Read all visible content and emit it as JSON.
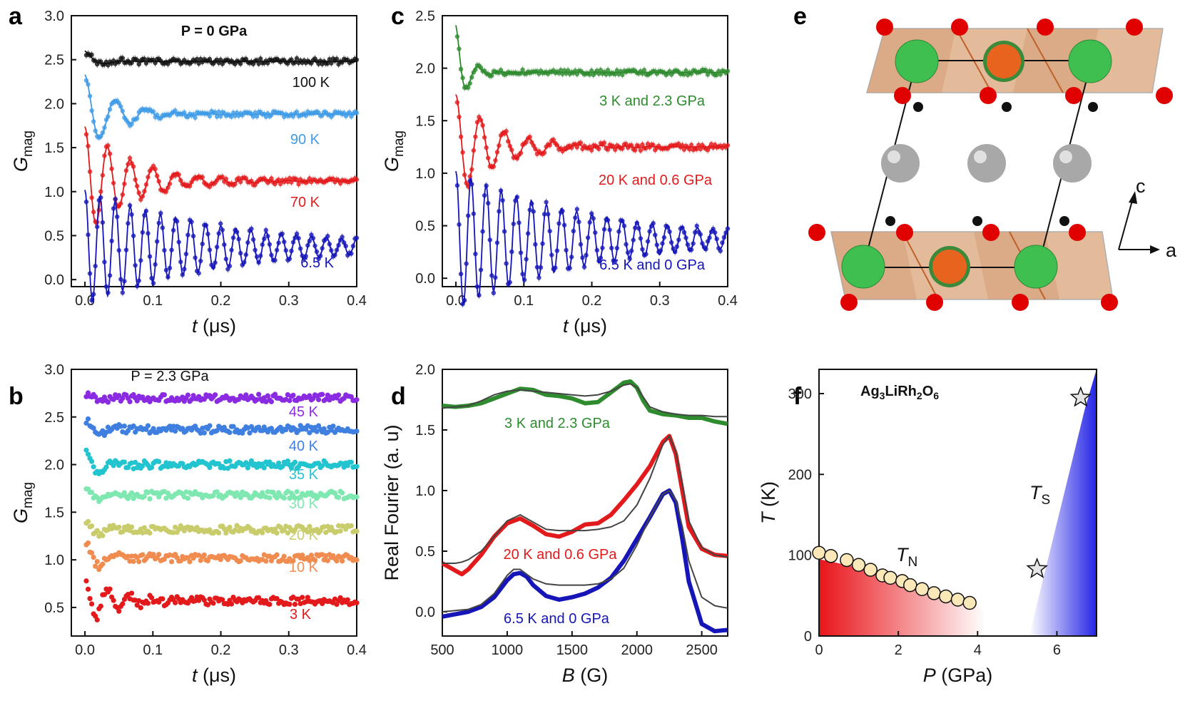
{
  "figure": {
    "panels": [
      "a",
      "b",
      "c",
      "d",
      "e",
      "f"
    ]
  },
  "chart_data": [
    {
      "id": "a",
      "type": "scatter",
      "title": "P = 0 GPa",
      "xlabel": "t (μs)",
      "ylabel": "G_mag",
      "xlim": [
        -0.02,
        0.4
      ],
      "ylim": [
        -0.08,
        3.0
      ],
      "xticks": [
        0.0,
        0.1,
        0.2,
        0.3,
        0.4
      ],
      "yticks": [
        0.0,
        0.5,
        1.0,
        1.5,
        2.0,
        2.5,
        3.0
      ],
      "series": [
        {
          "name": "100 K",
          "color": "#111111",
          "offset": 2.48,
          "amp": 0.12,
          "freq": 15,
          "decay": 0.02,
          "relax": 0.0,
          "noise": 0.035
        },
        {
          "name": "90 K",
          "color": "#3f9be6",
          "offset": 1.88,
          "amp": 0.45,
          "freq": 22,
          "decay": 0.045,
          "relax": 0.0,
          "noise": 0.03
        },
        {
          "name": "70 K",
          "color": "#e31a1c",
          "offset": 1.12,
          "amp": 0.62,
          "freq": 30,
          "decay": 0.07,
          "relax": 0.0,
          "noise": 0.03
        },
        {
          "name": "6.5 K",
          "color": "#1515b8",
          "offset": 0.37,
          "amp": 0.65,
          "freq": 45,
          "decay": 0.2,
          "relax": 0.0,
          "noise": 0.03
        }
      ]
    },
    {
      "id": "b",
      "type": "scatter",
      "title": "P = 2.3 GPa",
      "xlabel": "t (μs)",
      "ylabel": "G_mag",
      "xlim": [
        -0.02,
        0.4
      ],
      "ylim": [
        0.2,
        3.0
      ],
      "xticks": [
        0.0,
        0.1,
        0.2,
        0.3,
        0.4
      ],
      "yticks": [
        0.5,
        1.0,
        1.5,
        2.0,
        2.5,
        3.0
      ],
      "series": [
        {
          "name": "45 K",
          "color": "#8a2be2",
          "offset": 2.7,
          "amp": 0.06,
          "freq": 18,
          "decay": 0.02,
          "relax": 0.0,
          "noise": 0.04
        },
        {
          "name": "40 K",
          "color": "#3f7fe0",
          "offset": 2.37,
          "amp": 0.12,
          "freq": 20,
          "decay": 0.02,
          "relax": 0.0,
          "noise": 0.04
        },
        {
          "name": "35 K",
          "color": "#22c4cf",
          "offset": 2.0,
          "amp": 0.22,
          "freq": 22,
          "decay": 0.02,
          "relax": 0.0,
          "noise": 0.04
        },
        {
          "name": "30 K",
          "color": "#7fe8b0",
          "offset": 1.68,
          "amp": 0.12,
          "freq": 22,
          "decay": 0.02,
          "relax": 0.0,
          "noise": 0.04
        },
        {
          "name": "20 K",
          "color": "#c9cc6a",
          "offset": 1.32,
          "amp": 0.12,
          "freq": 22,
          "decay": 0.02,
          "relax": 0.0,
          "noise": 0.04
        },
        {
          "name": "10 K",
          "color": "#f08c50",
          "offset": 1.02,
          "amp": 0.2,
          "freq": 22,
          "decay": 0.025,
          "relax": 0.0,
          "noise": 0.04
        },
        {
          "name": "3 K",
          "color": "#e31a1c",
          "offset": 0.57,
          "amp": 0.28,
          "freq": 30,
          "decay": 0.04,
          "relax": 0.0,
          "noise": 0.04
        }
      ]
    },
    {
      "id": "c",
      "type": "scatter",
      "xlabel": "t (μs)",
      "ylabel": "G_mag",
      "xlim": [
        -0.02,
        0.4
      ],
      "ylim": [
        -0.08,
        2.5
      ],
      "xticks": [
        0.0,
        0.1,
        0.2,
        0.3,
        0.4
      ],
      "yticks": [
        0.0,
        0.5,
        1.0,
        1.5,
        2.0,
        2.5
      ],
      "series": [
        {
          "name": "3 K and 2.3 GPa",
          "color": "#2e8b2e",
          "offset": 1.96,
          "amp": 0.45,
          "freq": 30,
          "decay": 0.015,
          "relax": 0.0,
          "noise": 0.025
        },
        {
          "name": "20 K and 0.6 GPa",
          "color": "#e31a1c",
          "offset": 1.25,
          "amp": 0.5,
          "freq": 28,
          "decay": 0.06,
          "relax": 0.0,
          "noise": 0.03
        },
        {
          "name": "6.5 K and 0 GPa",
          "color": "#1515b8",
          "offset": 0.37,
          "amp": 0.65,
          "freq": 45,
          "decay": 0.2,
          "relax": 0.0,
          "noise": 0.03
        }
      ]
    },
    {
      "id": "d",
      "type": "line",
      "xlabel": "B (G)",
      "ylabel": "Real Fourier (a. u)",
      "xlim": [
        500,
        2700
      ],
      "ylim": [
        -0.2,
        2.0
      ],
      "xticks": [
        500,
        1000,
        1500,
        2000,
        2500
      ],
      "yticks": [
        0.0,
        0.5,
        1.0,
        1.5,
        2.0
      ],
      "series": [
        {
          "name": "3 K and 2.3 GPa",
          "color": "#2e8b2e",
          "x": [
            500,
            600,
            700,
            800,
            900,
            1000,
            1100,
            1200,
            1300,
            1400,
            1500,
            1600,
            1700,
            1800,
            1900,
            1950,
            2000,
            2050,
            2100,
            2200,
            2300,
            2400,
            2500,
            2600,
            2700
          ],
          "y": [
            1.7,
            1.69,
            1.7,
            1.72,
            1.76,
            1.8,
            1.84,
            1.83,
            1.79,
            1.78,
            1.76,
            1.72,
            1.73,
            1.81,
            1.89,
            1.9,
            1.85,
            1.74,
            1.66,
            1.63,
            1.62,
            1.6,
            1.6,
            1.57,
            1.55
          ],
          "fit": [
            1.68,
            1.69,
            1.7,
            1.74,
            1.79,
            1.82,
            1.83,
            1.82,
            1.81,
            1.8,
            1.79,
            1.78,
            1.79,
            1.82,
            1.87,
            1.88,
            1.85,
            1.77,
            1.69,
            1.65,
            1.63,
            1.62,
            1.62,
            1.61,
            1.61
          ]
        },
        {
          "name": "20 K and 0.6 GPa",
          "color": "#e31a1c",
          "x": [
            500,
            600,
            650,
            700,
            800,
            900,
            1000,
            1100,
            1200,
            1300,
            1400,
            1500,
            1600,
            1700,
            1800,
            1900,
            2000,
            2100,
            2200,
            2250,
            2300,
            2350,
            2400,
            2500,
            2600,
            2700
          ],
          "y": [
            0.4,
            0.34,
            0.31,
            0.35,
            0.47,
            0.62,
            0.73,
            0.77,
            0.71,
            0.64,
            0.62,
            0.66,
            0.72,
            0.73,
            0.8,
            0.92,
            1.05,
            1.2,
            1.4,
            1.45,
            1.3,
            1.0,
            0.7,
            0.52,
            0.47,
            0.46
          ],
          "fit": [
            0.4,
            0.4,
            0.41,
            0.43,
            0.5,
            0.62,
            0.75,
            0.8,
            0.74,
            0.68,
            0.67,
            0.67,
            0.67,
            0.68,
            0.7,
            0.75,
            0.88,
            1.1,
            1.38,
            1.45,
            1.32,
            1.05,
            0.75,
            0.53,
            0.47,
            0.45
          ]
        },
        {
          "name": "6.5 K and 0 GPa",
          "color": "#1515b8",
          "x": [
            500,
            600,
            700,
            800,
            900,
            1000,
            1050,
            1100,
            1150,
            1200,
            1300,
            1400,
            1500,
            1600,
            1700,
            1800,
            1900,
            2000,
            2100,
            2200,
            2250,
            2300,
            2350,
            2400,
            2500,
            2600,
            2700
          ],
          "y": [
            -0.04,
            -0.02,
            0.0,
            0.04,
            0.12,
            0.26,
            0.31,
            0.32,
            0.29,
            0.22,
            0.13,
            0.1,
            0.12,
            0.15,
            0.2,
            0.28,
            0.42,
            0.6,
            0.78,
            0.97,
            1.0,
            0.9,
            0.6,
            0.25,
            -0.1,
            -0.16,
            -0.15
          ],
          "fit": [
            0.0,
            0.01,
            0.02,
            0.06,
            0.15,
            0.3,
            0.35,
            0.35,
            0.31,
            0.27,
            0.23,
            0.22,
            0.22,
            0.22,
            0.23,
            0.27,
            0.36,
            0.55,
            0.78,
            0.97,
            1.0,
            0.92,
            0.7,
            0.42,
            0.12,
            0.05,
            0.03
          ]
        }
      ]
    },
    {
      "id": "f",
      "type": "scatter",
      "title": "Ag3LiRh2O6",
      "xlabel": "P (GPa)",
      "ylabel": "T (K)",
      "xlim": [
        0,
        7
      ],
      "ylim": [
        0,
        330
      ],
      "xticks": [
        0,
        2,
        4,
        6
      ],
      "yticks": [
        0,
        100,
        200,
        300
      ],
      "TN_label": "T",
      "TN_sub": "N",
      "TS_label": "T",
      "TS_sub": "S",
      "TN_points": {
        "x": [
          0.0,
          0.3,
          0.7,
          1.0,
          1.3,
          1.6,
          1.8,
          2.1,
          2.3,
          2.6,
          2.9,
          3.2,
          3.5,
          3.8
        ],
        "y": [
          103,
          99,
          94,
          88,
          82,
          75,
          72,
          68,
          63,
          58,
          53,
          49,
          45,
          41
        ]
      },
      "TS_points": {
        "x": [
          5.5,
          6.6
        ],
        "y": [
          83,
          295
        ]
      },
      "TN_region_color": "#e8141a",
      "TS_region_color": "#2424e6"
    }
  ],
  "panel_e": {
    "axis_c": "c",
    "axis_a": "a",
    "colors": {
      "O": "#e00000",
      "Li": "#3fbf4f",
      "Rh": "#e8641e",
      "Ag": "#a8a8a8",
      "octahedra": "#d9a47a",
      "frame": "#111111"
    }
  }
}
